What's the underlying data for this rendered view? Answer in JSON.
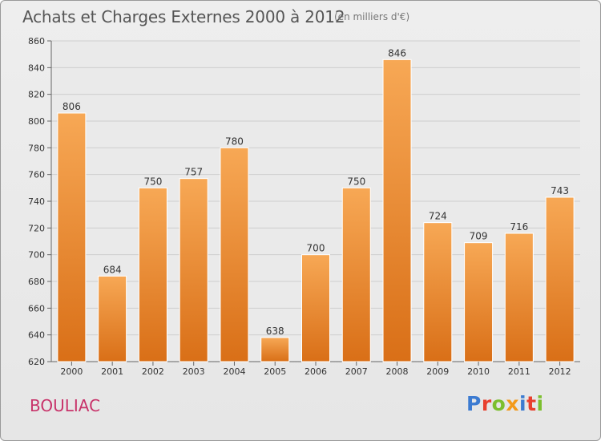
{
  "header": {
    "title": "Achats et Charges Externes 2000 à 2012",
    "unit_note": "(en milliers d'€)"
  },
  "footer": {
    "commune": "BOULIAC",
    "logo_text": "Proxiti"
  },
  "colors": {
    "bar_top": "#f7a855",
    "bar_bottom": "#d96f17",
    "grid": "#cfcfcf",
    "commune": "#c8336a",
    "logo_letters": [
      "#3c7bd1",
      "#e8402f",
      "#7cbf2e",
      "#f39a1a",
      "#3c7bd1",
      "#e8402f",
      "#7cbf2e"
    ]
  },
  "chart_data": {
    "type": "bar",
    "title": "Achats et Charges Externes 2000 à 2012",
    "subtitle": "(en milliers d'€)",
    "categories": [
      "2000",
      "2001",
      "2002",
      "2003",
      "2004",
      "2005",
      "2006",
      "2007",
      "2008",
      "2009",
      "2010",
      "2011",
      "2012"
    ],
    "values": [
      806,
      684,
      750,
      757,
      780,
      638,
      700,
      750,
      846,
      724,
      709,
      716,
      743
    ],
    "ylim": [
      620,
      860
    ],
    "yticks": [
      620,
      640,
      660,
      680,
      700,
      720,
      740,
      760,
      780,
      800,
      820,
      840,
      860
    ],
    "grid": true,
    "legend": "none",
    "data_labels": true
  }
}
